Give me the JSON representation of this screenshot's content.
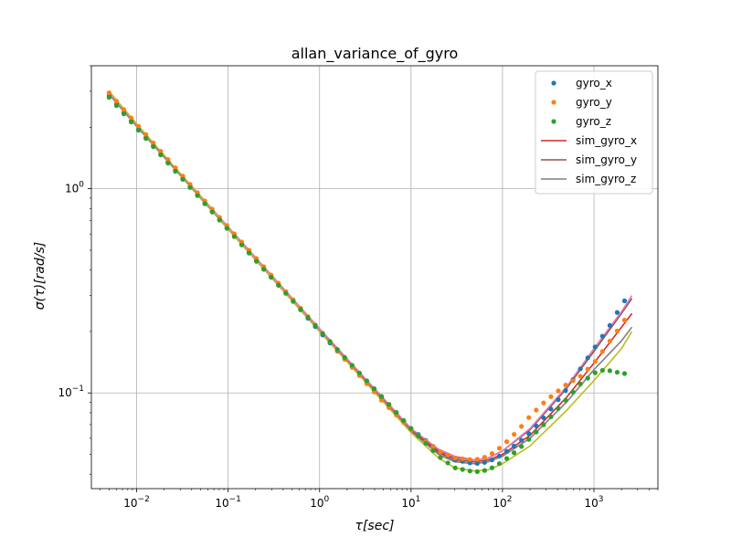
{
  "chart_data": {
    "type": "scatter",
    "title": "allan_variance_of_gyro",
    "xlabel": "τ[sec]",
    "ylabel": "σ(τ)[rad/s]",
    "x_scale": "log",
    "y_scale": "log",
    "xlim": [
      0.0032,
      5000
    ],
    "ylim": [
      0.034,
      4.0
    ],
    "grid": true,
    "legend_position": "top-right",
    "x_ticks": [
      {
        "value": 0.01,
        "base": "10",
        "exp": "−2"
      },
      {
        "value": 0.1,
        "base": "10",
        "exp": "−1"
      },
      {
        "value": 1,
        "base": "10",
        "exp": "0"
      },
      {
        "value": 10,
        "base": "10",
        "exp": "1"
      },
      {
        "value": 100,
        "base": "10",
        "exp": "2"
      },
      {
        "value": 1000,
        "base": "10",
        "exp": "3"
      }
    ],
    "y_ticks": [
      {
        "value": 0.1,
        "base": "10",
        "exp": "−1"
      },
      {
        "value": 1,
        "base": "10",
        "exp": "0"
      }
    ],
    "series": [
      {
        "name": "gyro_x",
        "kind": "scatter",
        "color": "#1f77b4",
        "x": [
          0.005,
          0.01,
          0.02,
          0.05,
          0.1,
          0.2,
          0.5,
          1,
          2,
          5,
          10,
          20,
          30,
          50,
          70,
          100,
          150,
          200,
          300,
          500,
          700,
          1000,
          1500,
          2000,
          2600
        ],
        "y": [
          2.85,
          2.0,
          1.42,
          0.9,
          0.635,
          0.45,
          0.285,
          0.2,
          0.142,
          0.092,
          0.067,
          0.052,
          0.047,
          0.045,
          0.046,
          0.05,
          0.057,
          0.064,
          0.078,
          0.104,
          0.13,
          0.165,
          0.215,
          0.27,
          0.315
        ]
      },
      {
        "name": "gyro_y",
        "kind": "scatter",
        "color": "#ff7f0e",
        "x": [
          0.005,
          0.01,
          0.02,
          0.05,
          0.1,
          0.2,
          0.5,
          1,
          2,
          5,
          10,
          20,
          30,
          50,
          70,
          100,
          150,
          200,
          300,
          500,
          700,
          1000,
          1500,
          2000,
          2600
        ],
        "y": [
          2.95,
          2.07,
          1.46,
          0.92,
          0.65,
          0.46,
          0.29,
          0.204,
          0.142,
          0.09,
          0.066,
          0.052,
          0.048,
          0.047,
          0.049,
          0.055,
          0.066,
          0.077,
          0.092,
          0.11,
          0.12,
          0.14,
          0.18,
          0.215,
          0.26
        ]
      },
      {
        "name": "gyro_z",
        "kind": "scatter",
        "color": "#2ca02c",
        "x": [
          0.005,
          0.01,
          0.02,
          0.05,
          0.1,
          0.2,
          0.5,
          1,
          2,
          5,
          10,
          20,
          30,
          50,
          70,
          100,
          150,
          200,
          300,
          500,
          700,
          1000,
          1300,
          1700,
          2000,
          2600
        ],
        "y": [
          2.8,
          1.98,
          1.4,
          0.89,
          0.63,
          0.445,
          0.285,
          0.203,
          0.145,
          0.094,
          0.067,
          0.049,
          0.043,
          0.041,
          0.042,
          0.046,
          0.053,
          0.06,
          0.072,
          0.093,
          0.11,
          0.125,
          0.13,
          0.127,
          0.125,
          0.123
        ]
      },
      {
        "name": "sim_gyro_x",
        "kind": "line",
        "color": "#d62728",
        "x": [
          0.005,
          0.01,
          0.1,
          1,
          10,
          20,
          30,
          50,
          70,
          100,
          200,
          500,
          1000,
          2000,
          2600
        ],
        "y": [
          2.9,
          2.03,
          0.64,
          0.205,
          0.066,
          0.051,
          0.047,
          0.046,
          0.047,
          0.05,
          0.062,
          0.095,
          0.14,
          0.21,
          0.245
        ]
      },
      {
        "name": "sim_gyro_y",
        "kind": "line",
        "color": "#8c564b",
        "x": [
          0.005,
          0.01,
          0.1,
          1,
          10,
          20,
          30,
          50,
          70,
          100,
          200,
          500,
          1000,
          2000,
          2600
        ],
        "y": [
          2.92,
          2.05,
          0.65,
          0.206,
          0.067,
          0.052,
          0.048,
          0.047,
          0.048,
          0.052,
          0.066,
          0.105,
          0.16,
          0.245,
          0.29
        ]
      },
      {
        "name": "sim_gyro_z",
        "kind": "line",
        "color": "#7f7f7f",
        "x": [
          0.005,
          0.01,
          0.1,
          1,
          10,
          20,
          30,
          50,
          70,
          100,
          200,
          500,
          1000,
          2000,
          2600
        ],
        "y": [
          2.9,
          2.02,
          0.635,
          0.2,
          0.065,
          0.05,
          0.046,
          0.045,
          0.046,
          0.049,
          0.06,
          0.09,
          0.13,
          0.18,
          0.21
        ]
      },
      {
        "name": "",
        "kind": "line",
        "legend": false,
        "color": "#e377c2",
        "x": [
          0.005,
          0.01,
          0.1,
          1,
          10,
          20,
          30,
          50,
          70,
          100,
          200,
          500,
          1000,
          2000,
          2600
        ],
        "y": [
          2.95,
          2.06,
          0.65,
          0.206,
          0.067,
          0.053,
          0.049,
          0.047,
          0.048,
          0.052,
          0.067,
          0.107,
          0.165,
          0.25,
          0.3
        ]
      },
      {
        "name": "",
        "kind": "line",
        "legend": false,
        "color": "#bcbd22",
        "x": [
          0.005,
          0.01,
          0.1,
          1,
          10,
          20,
          30,
          50,
          70,
          100,
          200,
          500,
          1000,
          2000,
          2600
        ],
        "y": [
          3.0,
          2.08,
          0.64,
          0.2,
          0.064,
          0.048,
          0.043,
          0.0415,
          0.042,
          0.045,
          0.055,
          0.082,
          0.115,
          0.165,
          0.2
        ]
      }
    ]
  }
}
